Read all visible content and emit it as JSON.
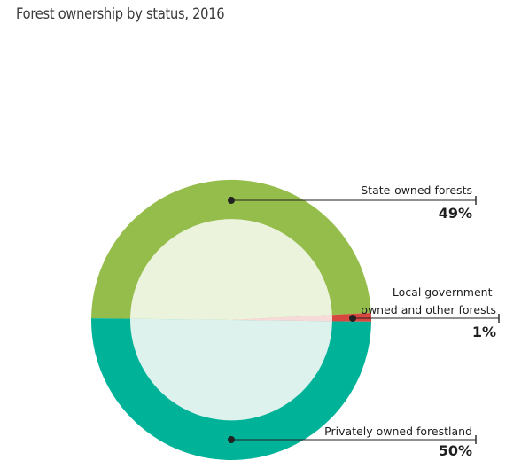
{
  "title": "Forest ownership by status, 2016",
  "chart_data": {
    "type": "pie",
    "title": "Forest ownership by status, 2016",
    "slices": [
      {
        "name": "State-owned forests",
        "label_lines": [
          "State-owned forests"
        ],
        "value": 49,
        "value_label": "49%",
        "color": "#95bd4b",
        "inner_color": "#ecf3dd"
      },
      {
        "name": "Local government-owned and other forests",
        "label_lines": [
          "Local government-",
          "owned and other forests"
        ],
        "value": 1,
        "value_label": "1%",
        "color": "#d8473f",
        "inner_color": "#f7dbd8"
      },
      {
        "name": "Privately owned forestland",
        "label_lines": [
          "Privately owned forestland"
        ],
        "value": 50,
        "value_label": "50%",
        "color": "#00b298",
        "inner_color": "#ddf1ed"
      }
    ]
  }
}
